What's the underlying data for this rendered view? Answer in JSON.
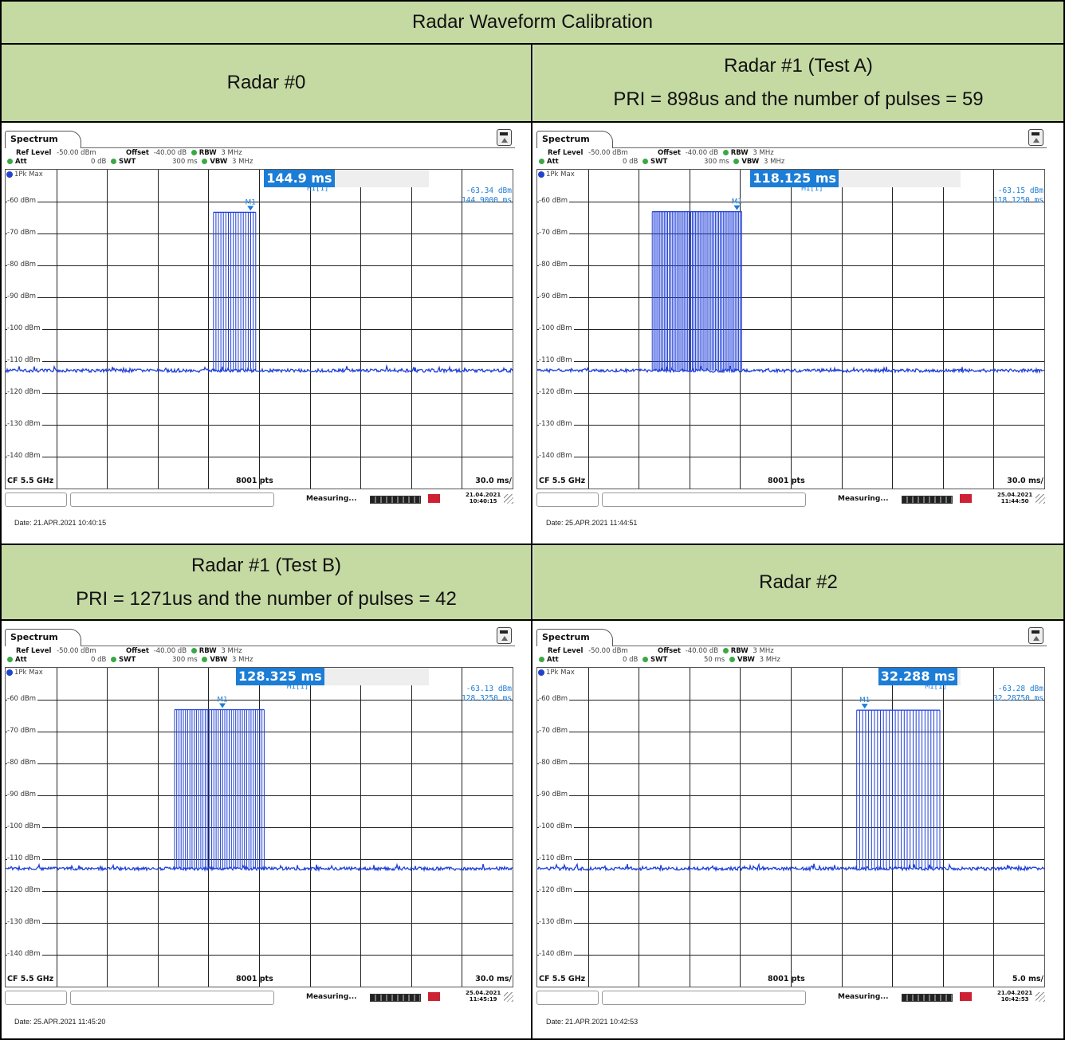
{
  "header": {
    "title": "Radar Waveform Calibration",
    "radar0": {
      "line1": "Radar #0"
    },
    "radar1a": {
      "line1": "Radar #1 (Test A)",
      "line2": "PRI = 898us and the number of pulses = 59"
    },
    "radar1b": {
      "line1": "Radar #1 (Test B)",
      "line2": "PRI = 1271us and the number of pulses = 42"
    },
    "radar2": {
      "line1": "Radar #2"
    }
  },
  "colors": {
    "header_bg": "#c5d9a3",
    "trace": "#1f3fd8",
    "marker": "#1c7dd6"
  },
  "screens": [
    {
      "tab": "Spectrum",
      "ref_level_label": "Ref Level",
      "ref_level": "-50.00 dBm",
      "offset_label": "Offset",
      "offset": "-40.00 dB",
      "rbw_label": "RBW",
      "rbw": "3 MHz",
      "att_label": "Att",
      "att": "0 dB",
      "swt_label": "SWT",
      "swt": "300 ms",
      "vbw_label": "VBW",
      "vbw": "3 MHz",
      "trace_label": "1Pk Max",
      "marker_big": "144.9 ms",
      "marker_id": "M1[1]",
      "marker_tag": "M1",
      "reading_level": "-63.34 dBm",
      "reading_time": "144.9000 ms",
      "y_ticks": [
        "-60 dBm",
        "-70 dBm",
        "-80 dBm",
        "-90 dBm",
        "-100 dBm",
        "-110 dBm",
        "-120 dBm",
        "-130 dBm",
        "-140 dBm"
      ],
      "cf": "CF 5.5 GHz",
      "pts": "8001 pts",
      "span": "30.0 ms/",
      "measuring": "Measuring...",
      "inst_date": "21.04.2021",
      "inst_time": "10:40:15",
      "date_footer": "Date: 21.APR.2021  10:40:15"
    },
    {
      "tab": "Spectrum",
      "ref_level_label": "Ref Level",
      "ref_level": "-50.00 dBm",
      "offset_label": "Offset",
      "offset": "-40.00 dB",
      "rbw_label": "RBW",
      "rbw": "3 MHz",
      "att_label": "Att",
      "att": "0 dB",
      "swt_label": "SWT",
      "swt": "300 ms",
      "vbw_label": "VBW",
      "vbw": "3 MHz",
      "trace_label": "1Pk Max",
      "marker_big": "118.125 ms",
      "marker_id": "M1[1]",
      "marker_tag": "M1",
      "reading_level": "-63.15 dBm",
      "reading_time": "118.1250 ms",
      "y_ticks": [
        "-60 dBm",
        "-70 dBm",
        "-80 dBm",
        "-90 dBm",
        "-100 dBm",
        "-110 dBm",
        "-120 dBm",
        "-130 dBm",
        "-140 dBm"
      ],
      "cf": "CF 5.5 GHz",
      "pts": "8001 pts",
      "span": "30.0 ms/",
      "measuring": "Measuring...",
      "inst_date": "25.04.2021",
      "inst_time": "11:44:50",
      "date_footer": "Date: 25.APR.2021  11:44:51"
    },
    {
      "tab": "Spectrum",
      "ref_level_label": "Ref Level",
      "ref_level": "-50.00 dBm",
      "offset_label": "Offset",
      "offset": "-40.00 dB",
      "rbw_label": "RBW",
      "rbw": "3 MHz",
      "att_label": "Att",
      "att": "0 dB",
      "swt_label": "SWT",
      "swt": "300 ms",
      "vbw_label": "VBW",
      "vbw": "3 MHz",
      "trace_label": "1Pk Max",
      "marker_big": "128.325 ms",
      "marker_id": "M1[1]",
      "marker_tag": "M1",
      "reading_level": "-63.13 dBm",
      "reading_time": "128.3250 ms",
      "y_ticks": [
        "-60 dBm",
        "-70 dBm",
        "-80 dBm",
        "-90 dBm",
        "-100 dBm",
        "-110 dBm",
        "-120 dBm",
        "-130 dBm",
        "-140 dBm"
      ],
      "cf": "CF 5.5 GHz",
      "pts": "8001 pts",
      "span": "30.0 ms/",
      "measuring": "Measuring...",
      "inst_date": "25.04.2021",
      "inst_time": "11:45:19",
      "date_footer": "Date: 25.APR.2021  11:45:20"
    },
    {
      "tab": "Spectrum",
      "ref_level_label": "Ref Level",
      "ref_level": "-50.00 dBm",
      "offset_label": "Offset",
      "offset": "-40.00 dB",
      "rbw_label": "RBW",
      "rbw": "3 MHz",
      "att_label": "Att",
      "att": "0 dB",
      "swt_label": "SWT",
      "swt": "50 ms",
      "vbw_label": "VBW",
      "vbw": "3 MHz",
      "trace_label": "1Pk Max",
      "marker_big": "32.288 ms",
      "marker_id": "M1[1]",
      "marker_tag": "M1",
      "reading_level": "-63.28 dBm",
      "reading_time": "32.28750 ms",
      "y_ticks": [
        "-60 dBm",
        "-70 dBm",
        "-80 dBm",
        "-90 dBm",
        "-100 dBm",
        "-110 dBm",
        "-120 dBm",
        "-130 dBm",
        "-140 dBm"
      ],
      "cf": "CF 5.5 GHz",
      "pts": "8001 pts",
      "span": "5.0 ms/",
      "measuring": "Measuring...",
      "inst_date": "21.04.2021",
      "inst_time": "10:42:53",
      "date_footer": "Date: 21.APR.2021  10:42:53"
    }
  ],
  "chart_data": [
    {
      "type": "line",
      "title": "Radar #0",
      "ylim": [
        -150,
        -50
      ],
      "xlim_ms": [
        0,
        300
      ],
      "noise_floor_dbm": -113,
      "pulse_level_dbm": -63.34,
      "pulse_start_ms": 123,
      "pulse_end_ms": 148,
      "pulse_count": 18,
      "marker_ms": 144.9
    },
    {
      "type": "line",
      "title": "Radar #1 (Test A)",
      "ylim": [
        -150,
        -50
      ],
      "xlim_ms": [
        0,
        300
      ],
      "noise_floor_dbm": -113,
      "pulse_level_dbm": -63.15,
      "pulse_start_ms": 68,
      "pulse_end_ms": 121,
      "pulse_count": 59,
      "marker_ms": 118.125
    },
    {
      "type": "line",
      "title": "Radar #1 (Test B)",
      "ylim": [
        -150,
        -50
      ],
      "xlim_ms": [
        0,
        300
      ],
      "noise_floor_dbm": -113,
      "pulse_level_dbm": -63.13,
      "pulse_start_ms": 100,
      "pulse_end_ms": 153,
      "pulse_count": 42,
      "marker_ms": 128.325
    },
    {
      "type": "line",
      "title": "Radar #2",
      "ylim": [
        -150,
        -50
      ],
      "xlim_ms": [
        0,
        50
      ],
      "noise_floor_dbm": -113,
      "pulse_level_dbm": -63.28,
      "pulse_start_ms": 31.5,
      "pulse_end_ms": 39.7,
      "pulse_count": 29,
      "marker_ms": 32.288
    }
  ]
}
